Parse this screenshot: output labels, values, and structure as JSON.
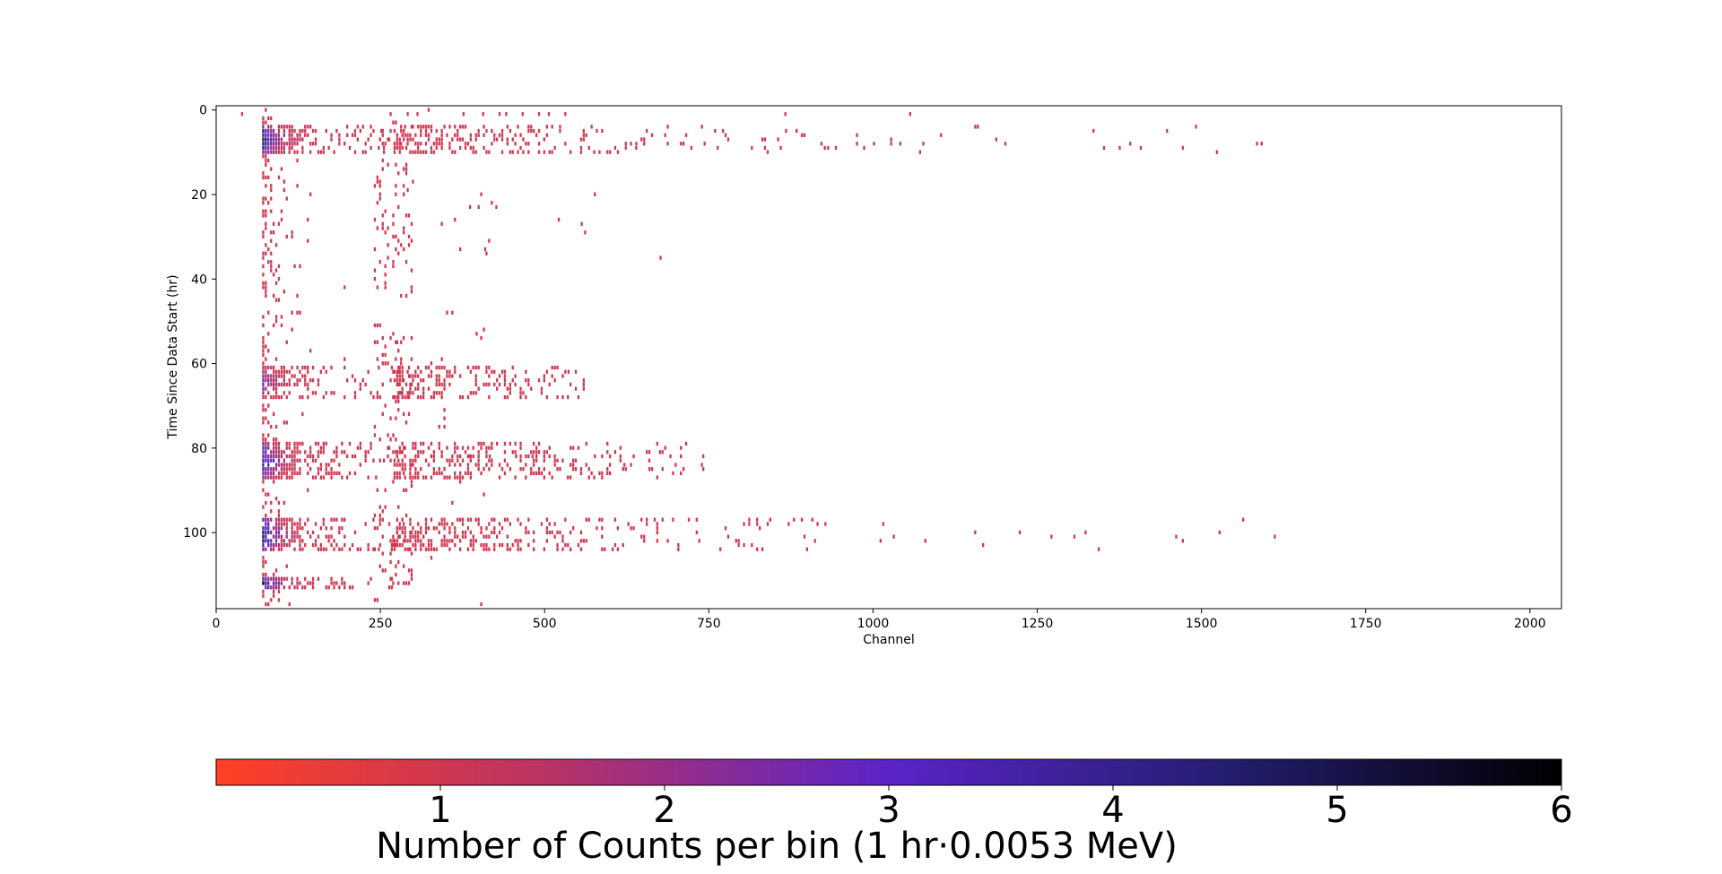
{
  "chart_data": {
    "type": "heatmap",
    "title": "",
    "xlabel": "Channel",
    "ylabel": "Time Since Data Start (hr)",
    "xlim": [
      0,
      2048
    ],
    "ylim": [
      118,
      -1
    ],
    "x_ticks": [
      "0",
      "250",
      "500",
      "750",
      "1000",
      "1250",
      "1500",
      "1750",
      "2000"
    ],
    "x_tick_values": [
      0,
      250,
      500,
      750,
      1000,
      1250,
      1500,
      1750,
      2000
    ],
    "y_ticks": [
      "0",
      "20",
      "40",
      "60",
      "80",
      "100"
    ],
    "y_tick_values": [
      0,
      20,
      40,
      60,
      80,
      100
    ],
    "bin": {
      "time_hr": 1,
      "channel_width": 4
    },
    "colorbar": {
      "label": "Number of Counts per bin (1 hr·0.0053 MeV)",
      "range": [
        0,
        6
      ],
      "ticks": [
        "1",
        "2",
        "3",
        "4",
        "5",
        "6"
      ],
      "tick_values": [
        1,
        2,
        3,
        4,
        5,
        6
      ],
      "colors": [
        "#ff4025",
        "#b83366",
        "#5a24c8",
        "#241e70",
        "#000000"
      ],
      "placement": "bottom"
    },
    "features": {
      "noise_edge_channel": 70,
      "line_region_channels": [
        240,
        300
      ],
      "line_region_hours": [
        1,
        117
      ],
      "burst_hours": [
        {
          "start": 4,
          "end": 10,
          "channel_max": 1600,
          "peak_counts": 6
        },
        {
          "start": 61,
          "end": 68,
          "channel_max": 570,
          "peak_counts": 3
        },
        {
          "start": 79,
          "end": 87,
          "channel_max": 740,
          "peak_counts": 5
        },
        {
          "start": 97,
          "end": 104,
          "channel_max": 1610,
          "peak_counts": 6
        },
        {
          "start": 111,
          "end": 113,
          "channel_max": 90,
          "peak_counts": 6
        }
      ],
      "isolated_hits": [
        [
          1,
          38
        ],
        [
          1,
          290
        ],
        [
          1,
          305
        ],
        [
          1,
          375
        ],
        [
          1,
          405
        ],
        [
          1,
          430
        ],
        [
          1,
          440
        ],
        [
          1,
          465
        ],
        [
          1,
          490
        ],
        [
          1,
          505
        ],
        [
          1,
          530
        ],
        [
          1,
          865
        ],
        [
          1,
          1055
        ],
        [
          8,
          920
        ],
        [
          8,
          1000
        ],
        [
          8,
          1040
        ],
        [
          8,
          1075
        ],
        [
          8,
          1200
        ],
        [
          8,
          1583
        ],
        [
          8,
          1590
        ],
        [
          9,
          925
        ],
        [
          9,
          985
        ],
        [
          20,
          575
        ],
        [
          23,
          385
        ],
        [
          23,
          425
        ],
        [
          26,
          520
        ],
        [
          27,
          555
        ],
        [
          29,
          560
        ],
        [
          33,
          408
        ],
        [
          35,
          675
        ],
        [
          53,
          395
        ],
        [
          62,
          535
        ],
        [
          82,
          370
        ],
        [
          82,
          385
        ],
        [
          82,
          415
        ],
        [
          82,
          455
        ],
        [
          82,
          480
        ],
        [
          82,
          575
        ],
        [
          82,
          740
        ],
        [
          84,
          620
        ],
        [
          85,
          740
        ],
        [
          101,
          1305
        ],
        [
          101,
          1460
        ],
        [
          101,
          1610
        ]
      ]
    }
  }
}
